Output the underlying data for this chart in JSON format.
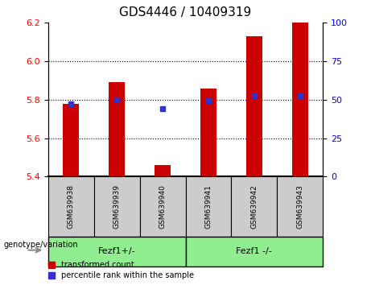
{
  "title": "GDS4446 / 10409319",
  "samples": [
    "GSM639938",
    "GSM639939",
    "GSM639940",
    "GSM639941",
    "GSM639942",
    "GSM639943"
  ],
  "bar_values": [
    5.78,
    5.89,
    5.46,
    5.86,
    6.13,
    6.2
  ],
  "bar_base": 5.4,
  "dot_values": [
    5.78,
    5.8,
    5.755,
    5.795,
    5.82,
    5.82
  ],
  "ylim_left": [
    5.4,
    6.2
  ],
  "ylim_right": [
    0,
    100
  ],
  "yticks_left": [
    5.4,
    5.6,
    5.8,
    6.0,
    6.2
  ],
  "yticks_right": [
    0,
    25,
    50,
    75,
    100
  ],
  "grid_lines": [
    5.6,
    5.8,
    6.0
  ],
  "bar_color": "#cc0000",
  "dot_color": "#3333cc",
  "group1_label": "Fezf1+/-",
  "group2_label": "Fezf1 -/-",
  "group1_indices": [
    0,
    1,
    2
  ],
  "group2_indices": [
    3,
    4,
    5
  ],
  "group_color": "#90ee90",
  "sample_bg_color": "#cccccc",
  "legend_label_red": "transformed count",
  "legend_label_blue": "percentile rank within the sample",
  "genotype_label": "genotype/variation",
  "title_fontsize": 11,
  "tick_fontsize": 8,
  "bar_width": 0.35
}
